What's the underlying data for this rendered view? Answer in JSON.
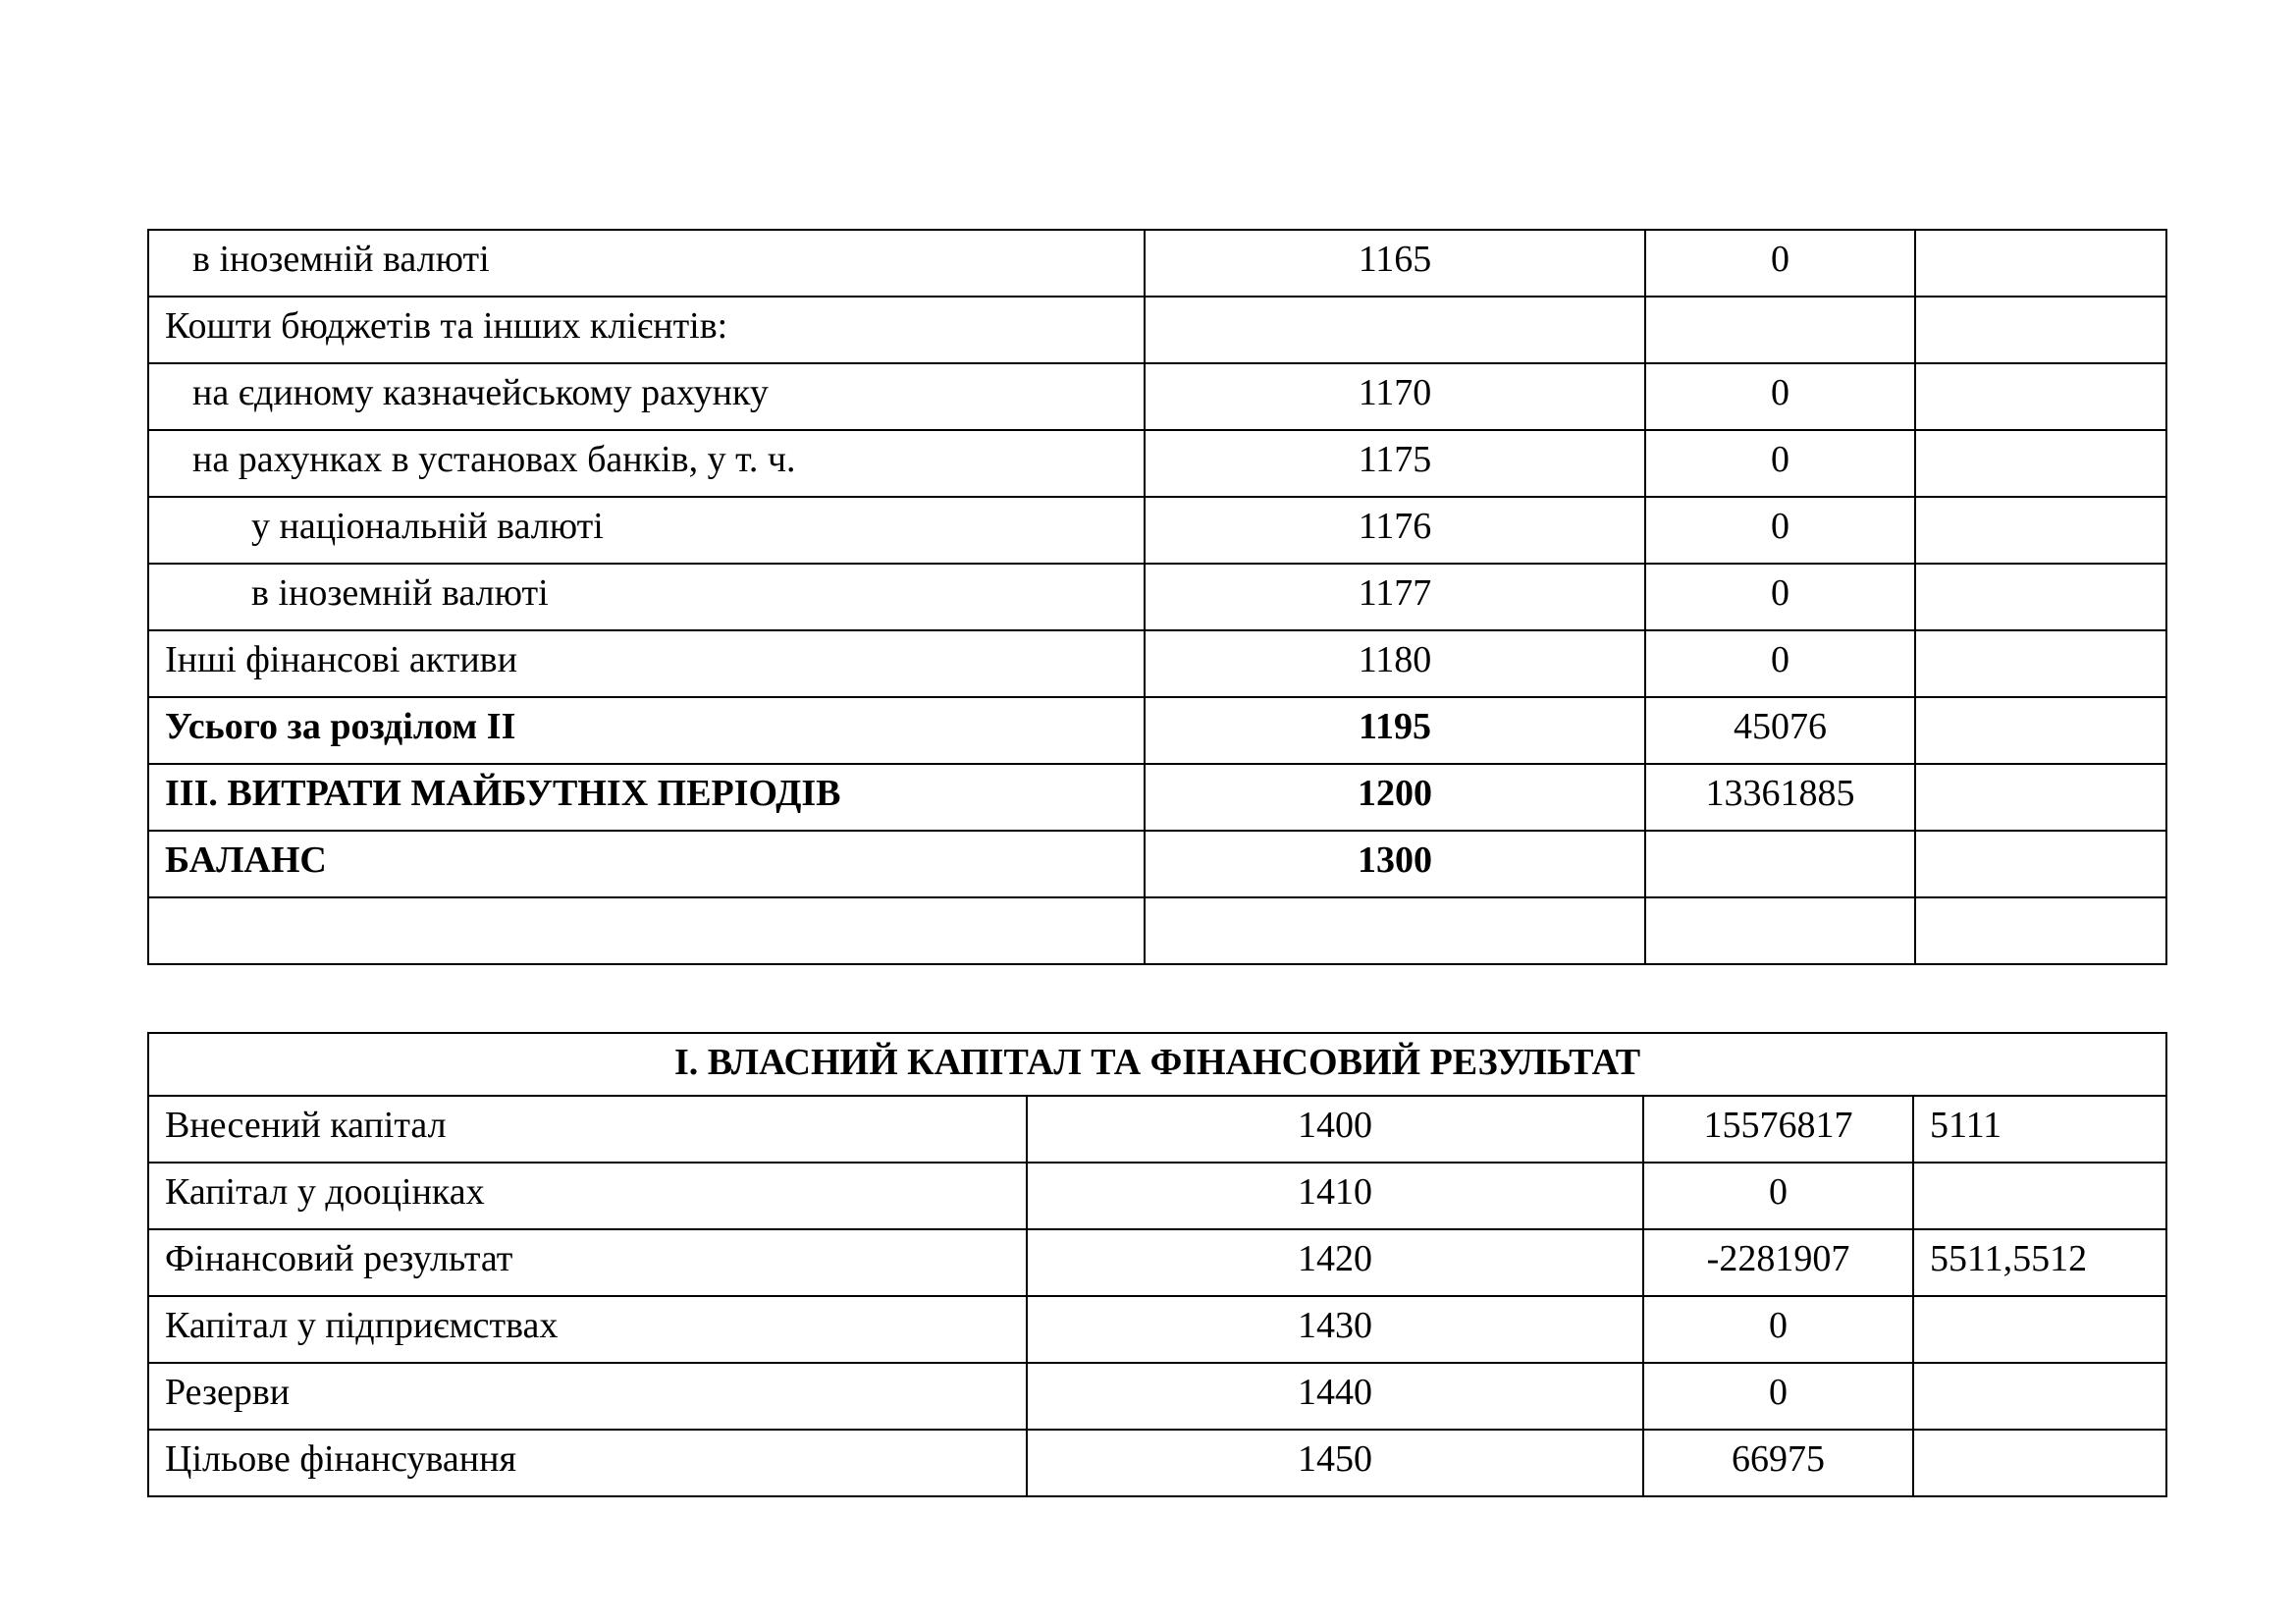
{
  "colors": {
    "page_background": "#ffffff",
    "table_border": "#000000",
    "text": "#000000"
  },
  "table1": {
    "rows": [
      {
        "label": "в іноземній валюті",
        "indent": 1,
        "bold": false,
        "code": "1165",
        "value": "0",
        "note": ""
      },
      {
        "label": "Кошти бюджетів та інших клієнтів:",
        "indent": 0,
        "bold": false,
        "code": "",
        "value": "",
        "note": ""
      },
      {
        "label": "на єдиному казначейському рахунку",
        "indent": 1,
        "bold": false,
        "code": "1170",
        "value": "0",
        "note": ""
      },
      {
        "label": "на рахунках в установах банків, у т. ч.",
        "indent": 1,
        "bold": false,
        "code": "1175",
        "value": "0",
        "note": ""
      },
      {
        "label": "у національній валюті",
        "indent": 2,
        "bold": false,
        "code": "1176",
        "value": "0",
        "note": ""
      },
      {
        "label": "в іноземній валюті",
        "indent": 2,
        "bold": false,
        "code": "1177",
        "value": "0",
        "note": ""
      },
      {
        "label": "Інші фінансові активи",
        "indent": 0,
        "bold": false,
        "code": "1180",
        "value": "0",
        "note": ""
      },
      {
        "label": "Усього за розділом II",
        "indent": 0,
        "bold": true,
        "code": "1195",
        "value": "45076",
        "note": ""
      },
      {
        "label": "III. ВИТРАТИ МАЙБУТНІХ ПЕРІОДІВ",
        "indent": 0,
        "bold": true,
        "code": "1200",
        "value": "13361885",
        "note": ""
      },
      {
        "label": "БАЛАНС",
        "indent": 0,
        "bold": true,
        "code": "1300",
        "value": "",
        "note": ""
      },
      {
        "label": "",
        "indent": 0,
        "bold": false,
        "code": "",
        "value": "",
        "note": ""
      }
    ]
  },
  "table2": {
    "header": "І. ВЛАСНИЙ КАПІТАЛ ТА ФІНАНСОВИЙ РЕЗУЛЬТАТ",
    "rows": [
      {
        "label": "Внесений капітал",
        "indent": 0,
        "bold": false,
        "code": "1400",
        "value": "15576817",
        "note": "5111"
      },
      {
        "label": "Капітал у дооцінках",
        "indent": 0,
        "bold": false,
        "code": "1410",
        "value": "0",
        "note": ""
      },
      {
        "label": "Фінансовий результат",
        "indent": 0,
        "bold": false,
        "code": "1420",
        "value": "-2281907",
        "note": "5511,5512"
      },
      {
        "label": "Капітал у підприємствах",
        "indent": 0,
        "bold": false,
        "code": "1430",
        "value": "0",
        "note": ""
      },
      {
        "label": "Резерви",
        "indent": 0,
        "bold": false,
        "code": "1440",
        "value": "0",
        "note": ""
      },
      {
        "label": "Цільове фінансування",
        "indent": 0,
        "bold": false,
        "code": "1450",
        "value": "66975",
        "note": ""
      }
    ]
  }
}
